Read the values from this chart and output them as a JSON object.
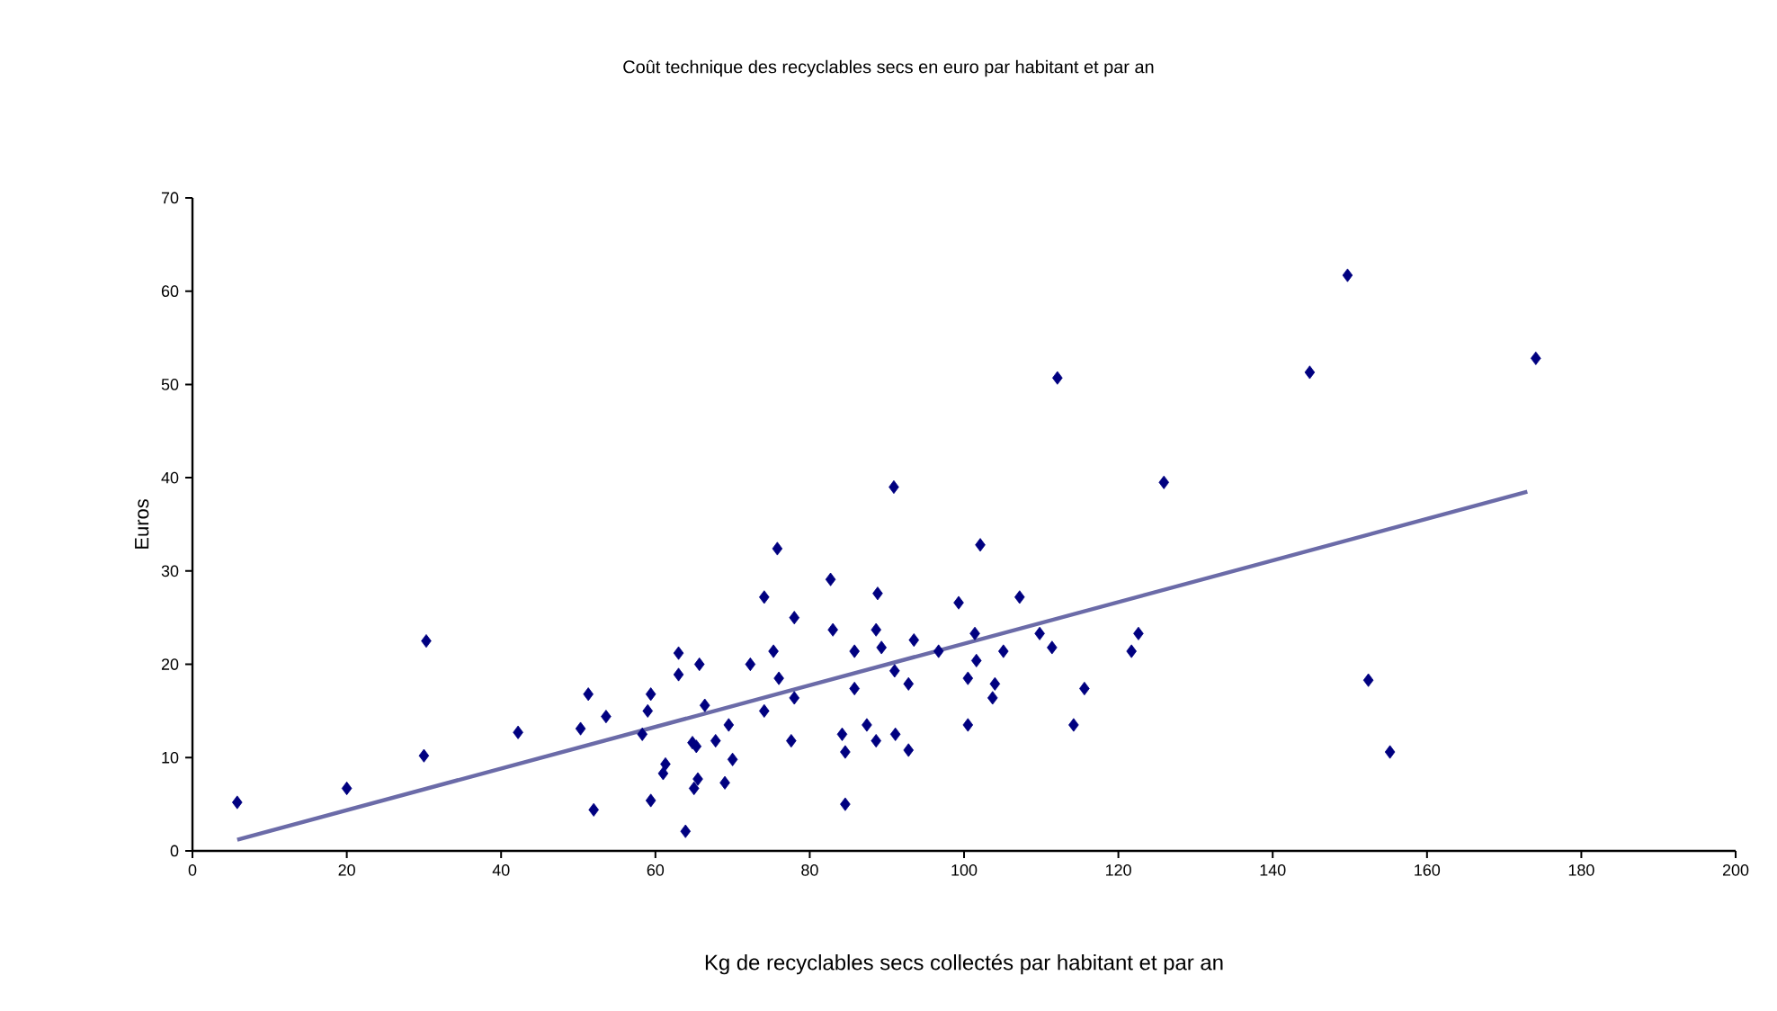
{
  "chart_data": {
    "type": "scatter",
    "title": "Coût technique des recyclables secs en euro par habitant et par an",
    "xlabel": "Kg de recyclables secs collectés par habitant et par an",
    "ylabel": "Euros",
    "xlim": [
      0,
      200
    ],
    "ylim": [
      0,
      70
    ],
    "xticks": [
      0,
      20,
      40,
      60,
      80,
      100,
      120,
      140,
      160,
      180,
      200
    ],
    "yticks": [
      0,
      10,
      20,
      30,
      40,
      50,
      60,
      70
    ],
    "grid": false,
    "series": [
      {
        "marker": "diamond",
        "color": "#000080",
        "x": [
          5.8,
          20,
          30.3,
          30,
          42.2,
          51.3,
          50.3,
          53.6,
          52,
          59.4,
          59,
          58.3,
          59.4,
          61.3,
          61,
          63,
          63,
          65.7,
          66.4,
          64.8,
          67.8,
          65.5,
          65,
          63.9,
          65.3,
          69.5,
          70,
          69,
          74.1,
          75.8,
          78,
          72.3,
          75.3,
          76,
          74.1,
          78,
          77.6,
          82.7,
          83,
          85.8,
          85.8,
          84.2,
          84.6,
          84.6,
          88.6,
          88.8,
          89.3,
          91,
          92.8,
          87.4,
          88.6,
          91.1,
          92.8,
          93.5,
          96.7,
          99.3,
          102.1,
          101.4,
          101.6,
          100.5,
          100.5,
          104,
          103.7,
          105.1,
          107.2,
          109.8,
          111.4,
          115.6,
          114.2,
          122.6,
          121.7,
          90.9,
          112.1,
          125.9,
          144.8,
          149.7,
          174.1,
          152.4,
          155.2
        ],
        "values": [
          5.2,
          6.7,
          22.5,
          10.2,
          12.7,
          16.8,
          13.1,
          14.4,
          4.4,
          16.8,
          15,
          12.5,
          5.4,
          9.3,
          8.3,
          21.2,
          18.9,
          20,
          15.6,
          11.6,
          11.8,
          7.7,
          6.7,
          2.1,
          11.2,
          13.5,
          9.8,
          7.3,
          27.2,
          32.4,
          25,
          20,
          21.4,
          18.5,
          15,
          16.4,
          11.8,
          29.1,
          23.7,
          21.4,
          17.4,
          12.5,
          10.6,
          5,
          23.7,
          27.6,
          21.8,
          19.3,
          17.9,
          13.5,
          11.8,
          12.5,
          10.8,
          22.6,
          21.4,
          26.6,
          32.8,
          23.3,
          20.4,
          18.5,
          13.5,
          17.9,
          16.4,
          21.4,
          27.2,
          23.3,
          21.8,
          17.4,
          13.5,
          23.3,
          21.4,
          39,
          50.7,
          39.5,
          51.3,
          61.7,
          52.8,
          18.3,
          10.6
        ]
      },
      {
        "type": "line",
        "marker": "none",
        "color": "#6b6ba8",
        "x": [
          5.8,
          173
        ],
        "values": [
          1.2,
          38.5
        ]
      }
    ]
  }
}
